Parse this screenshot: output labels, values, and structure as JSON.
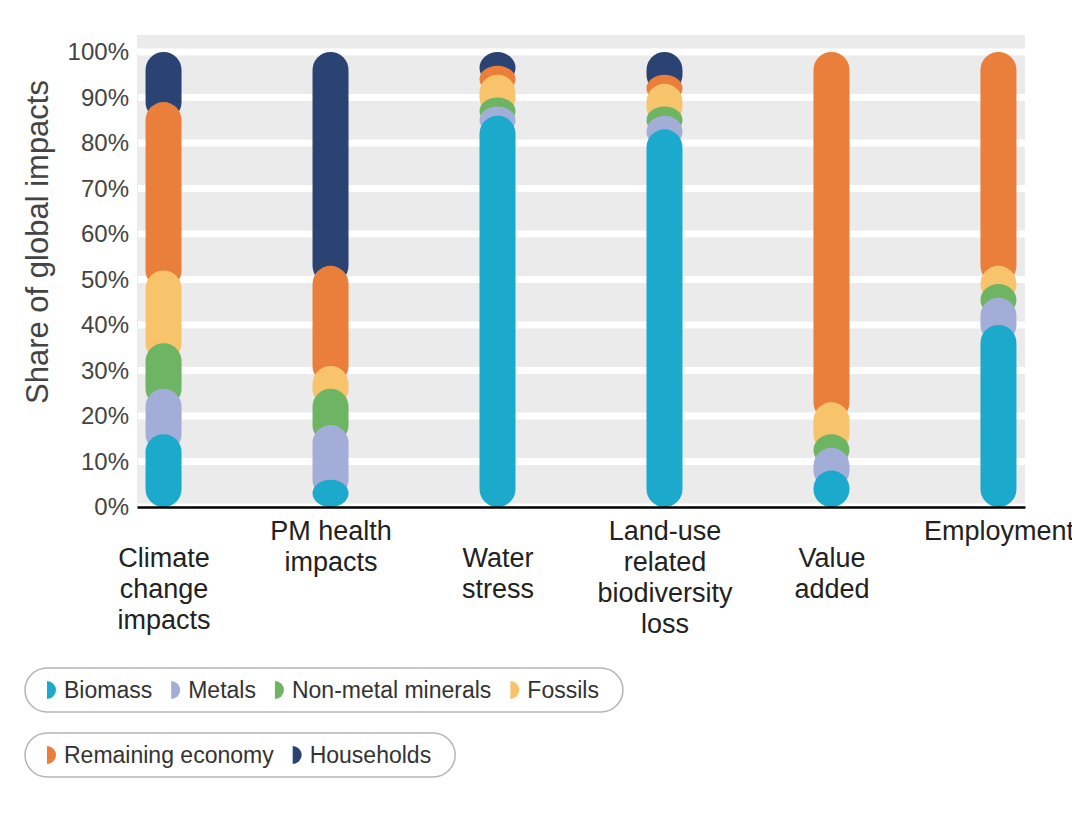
{
  "chart_data": {
    "type": "bar",
    "stacked": true,
    "grid": true,
    "legend": "bottom left",
    "ylabel": "Share of global impacts",
    "categories": [
      "Climate\nchange\nimpacts",
      "PM health\nimpacts",
      "Water\nstress",
      "Land-use\nrelated\nbiodiversity\nloss",
      "Value\nadded",
      "Employment"
    ],
    "ylim": [
      0,
      100
    ],
    "yticks": [
      {
        "value": 0,
        "label": "0%"
      },
      {
        "value": 10,
        "label": "10%"
      },
      {
        "value": 20,
        "label": "20%"
      },
      {
        "value": 30,
        "label": "30%"
      },
      {
        "value": 40,
        "label": "40%"
      },
      {
        "value": 50,
        "label": "50%"
      },
      {
        "value": 60,
        "label": "60%"
      },
      {
        "value": 70,
        "label": "70%"
      },
      {
        "value": 80,
        "label": "80%"
      },
      {
        "value": 90,
        "label": "90%"
      },
      {
        "value": 100,
        "label": "100%"
      }
    ],
    "series": [
      {
        "name": "Biomass",
        "color": "#1ba9cc",
        "values": [
          16,
          6,
          86,
          83,
          8,
          40
        ]
      },
      {
        "name": "Metals",
        "color": "#a3aed8",
        "values": [
          10,
          12,
          2,
          3,
          5,
          6
        ]
      },
      {
        "name": "Non-metal minerals",
        "color": "#6db463",
        "values": [
          10,
          8,
          2,
          2,
          3,
          3
        ]
      },
      {
        "name": "Fossils",
        "color": "#f7c46c",
        "values": [
          16,
          5,
          5,
          5,
          7,
          4
        ]
      },
      {
        "name": "Remaining economy",
        "color": "#e97f3a",
        "values": [
          37,
          22,
          2,
          2,
          77,
          47
        ]
      },
      {
        "name": "Households",
        "color": "#2a4372",
        "values": [
          11,
          47,
          3,
          5,
          0,
          0
        ]
      }
    ]
  }
}
